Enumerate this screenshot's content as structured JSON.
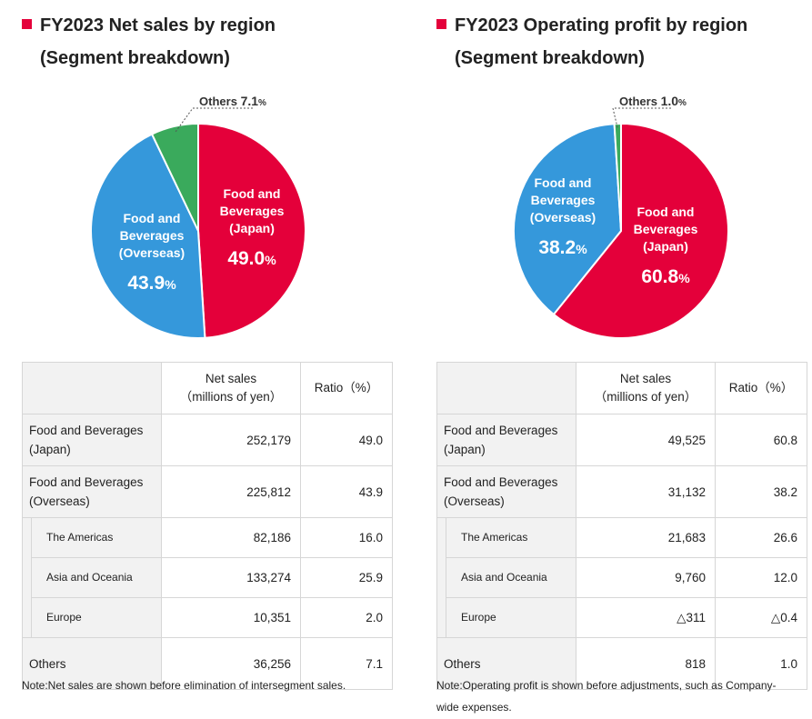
{
  "chart_data": [
    {
      "type": "pie",
      "title": "FY2023 Net sales by region",
      "subtitle": "(Segment breakdown)",
      "slices": [
        {
          "label_lines": [
            "Food and",
            "Beverages",
            "(Japan)"
          ],
          "value": 49.0,
          "value_text": "49.0",
          "color": "#e4003a"
        },
        {
          "label_lines": [
            "Food and",
            "Beverages",
            "(Overseas)"
          ],
          "value": 43.9,
          "value_text": "43.9",
          "color": "#3598db"
        },
        {
          "label_lines": [
            "Others"
          ],
          "value": 7.1,
          "value_text": "7.1",
          "color": "#3aaa5c"
        }
      ],
      "unit": "%"
    },
    {
      "type": "pie",
      "title": "FY2023 Operating profit by region",
      "subtitle": "(Segment breakdown)",
      "slices": [
        {
          "label_lines": [
            "Food and",
            "Beverages",
            "(Japan)"
          ],
          "value": 60.8,
          "value_text": "60.8",
          "color": "#e4003a"
        },
        {
          "label_lines": [
            "Food and",
            "Beverages",
            "(Overseas)"
          ],
          "value": 38.2,
          "value_text": "38.2",
          "color": "#3598db"
        },
        {
          "label_lines": [
            "Others"
          ],
          "value": 1.0,
          "value_text": "1.0",
          "color": "#3aaa5c"
        }
      ],
      "unit": "%"
    }
  ],
  "tables": [
    {
      "headers": [
        "Net sales\n（millions of yen）",
        "Ratio（%）"
      ],
      "rows": [
        {
          "label": "Food and Beverages (Japan)",
          "value": "252,179",
          "ratio": "49.0",
          "sub": false
        },
        {
          "label": "Food and Beverages (Overseas)",
          "value": "225,812",
          "ratio": "43.9",
          "sub": false
        },
        {
          "label": "The Americas",
          "value": "82,186",
          "ratio": "16.0",
          "sub": true
        },
        {
          "label": "Asia and Oceania",
          "value": "133,274",
          "ratio": "25.9",
          "sub": true
        },
        {
          "label": "Europe",
          "value": "10,351",
          "ratio": "2.0",
          "sub": true
        },
        {
          "label": "Others",
          "value": "36,256",
          "ratio": "7.1",
          "sub": false
        }
      ],
      "note": "Note:Net sales are shown before elimination of intersegment sales."
    },
    {
      "headers": [
        "Net sales\n（millions of yen）",
        "Ratio（%）"
      ],
      "rows": [
        {
          "label": "Food and Beverages (Japan)",
          "value": "49,525",
          "ratio": "60.8",
          "sub": false
        },
        {
          "label": "Food and Beverages (Overseas)",
          "value": "31,132",
          "ratio": "38.2",
          "sub": false
        },
        {
          "label": "The Americas",
          "value": "21,683",
          "ratio": "26.6",
          "sub": true
        },
        {
          "label": "Asia and Oceania",
          "value": "9,760",
          "ratio": "12.0",
          "sub": true
        },
        {
          "label": "Europe",
          "value": "△311",
          "ratio": "△0.4",
          "sub": true
        },
        {
          "label": "Others",
          "value": "818",
          "ratio": "1.0",
          "sub": false
        }
      ],
      "note": "Note:Operating profit is shown before adjustments, such as Company-wide expenses."
    }
  ]
}
